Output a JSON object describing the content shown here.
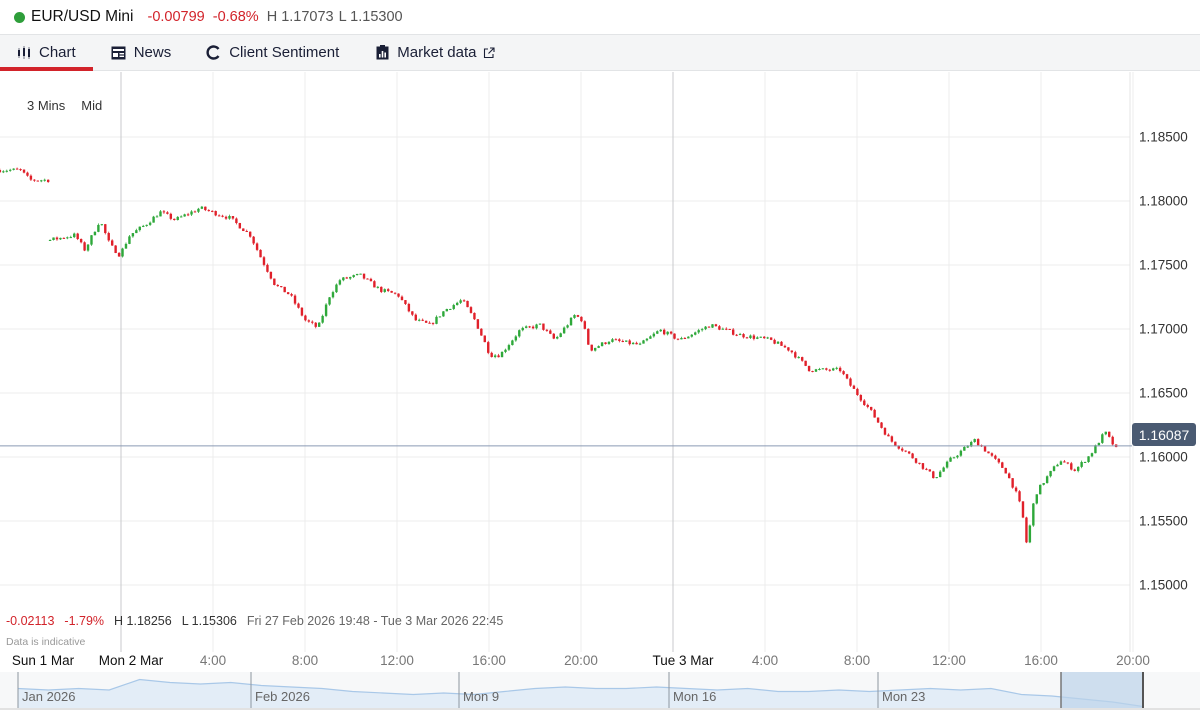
{
  "header": {
    "status_color": "#2e9e3a",
    "instrument": "EUR/USD Mini",
    "change": "-0.00799",
    "change_pct": "-0.68%",
    "high": "H 1.17073",
    "low": "L 1.15300"
  },
  "tabs": [
    {
      "label": "Chart",
      "icon": "candlestick-icon",
      "active": true
    },
    {
      "label": "News",
      "icon": "newspaper-icon"
    },
    {
      "label": "Client Sentiment",
      "icon": "refresh-circle-icon"
    },
    {
      "label": "Market data",
      "icon": "clipboard-chart-icon",
      "external": "external-link-icon"
    }
  ],
  "options": {
    "interval": "3 Mins",
    "price_type": "Mid"
  },
  "stats": {
    "change": "-0.02113",
    "change_pct": "-1.79%",
    "high": "H 1.18256",
    "low": "L 1.15306",
    "range": "Fri 27 Feb 2026 19:48 - Tue 3 Mar 2026 22:45",
    "note": "Data is indicative"
  },
  "chart_data": {
    "type": "candlestick",
    "interval": "3 Mins",
    "colors": {
      "up": "#2ea83a",
      "down": "#e0202a",
      "grid": "#ececec",
      "day_line": "#c8cacd",
      "price_line": "#8a9ab5"
    },
    "current_price": "1.16087",
    "y_ticks": [
      "1.18500",
      "1.18000",
      "1.17500",
      "1.17000",
      "1.16500",
      "1.16000",
      "1.15500",
      "1.15000"
    ],
    "y_values": [
      1.185,
      1.18,
      1.175,
      1.17,
      1.165,
      1.16,
      1.155,
      1.15
    ],
    "x_ticks": [
      {
        "label": "Sun 1 Mar",
        "t": "2026-03-01T18:00",
        "day": true
      },
      {
        "label": "Mon 2 Mar",
        "t": "2026-03-02T00:00",
        "day": true
      },
      {
        "label": "4:00",
        "t": "2026-03-02T04:00"
      },
      {
        "label": "8:00",
        "t": "2026-03-02T08:00"
      },
      {
        "label": "12:00",
        "t": "2026-03-02T12:00"
      },
      {
        "label": "16:00",
        "t": "2026-03-02T16:00"
      },
      {
        "label": "20:00",
        "t": "2026-03-02T20:00"
      },
      {
        "label": "Tue 3 Mar",
        "t": "2026-03-03T00:00",
        "day": true
      },
      {
        "label": "4:00",
        "t": "2026-03-03T04:00"
      },
      {
        "label": "8:00",
        "t": "2026-03-03T08:00"
      },
      {
        "label": "12:00",
        "t": "2026-03-03T12:00"
      },
      {
        "label": "16:00",
        "t": "2026-03-03T16:00"
      },
      {
        "label": "20:00",
        "t": "2026-03-03T20:00"
      }
    ],
    "segments": [
      [
        [
          "2026-03-01T18:44",
          1.18242
        ],
        [
          "2026-03-01T19:37",
          1.18242
        ],
        [
          "2026-03-01T20:02",
          1.18164
        ],
        [
          "2026-03-01T20:50",
          1.18164
        ]
      ],
      [
        [
          "2026-03-01T20:55",
          1.17695
        ],
        [
          "2026-03-01T22:00",
          1.17734
        ],
        [
          "2026-03-01T22:26",
          1.17617
        ],
        [
          "2026-03-01T23:05",
          1.17852
        ],
        [
          "2026-03-01T23:31",
          1.17656
        ],
        [
          "2026-03-01T23:57",
          1.17578
        ],
        [
          "2026-03-02T00:23",
          1.17734
        ],
        [
          "2026-03-02T01:03",
          1.17813
        ],
        [
          "2026-03-02T01:42",
          1.17914
        ],
        [
          "2026-03-02T02:21",
          1.17852
        ],
        [
          "2026-03-02T03:26",
          1.17945
        ],
        [
          "2026-03-02T04:44",
          1.17867
        ],
        [
          "2026-03-02T05:37",
          1.17734
        ],
        [
          "2026-03-02T06:08",
          1.17539
        ],
        [
          "2026-03-02T06:42",
          1.17344
        ],
        [
          "2026-03-02T07:21",
          1.17266
        ],
        [
          "2026-03-02T08:00",
          1.1707
        ],
        [
          "2026-03-02T08:34",
          1.17008
        ],
        [
          "2026-03-02T09:05",
          1.17266
        ],
        [
          "2026-03-02T09:31",
          1.17383
        ],
        [
          "2026-03-02T10:23",
          1.17422
        ],
        [
          "2026-03-02T11:16",
          1.17305
        ],
        [
          "2026-03-02T12:03",
          1.17266
        ],
        [
          "2026-03-02T12:47",
          1.1707
        ],
        [
          "2026-03-02T13:26",
          1.17031
        ],
        [
          "2026-03-02T14:05",
          1.17148
        ],
        [
          "2026-03-02T14:50",
          1.17227
        ],
        [
          "2026-03-02T15:23",
          1.1707
        ],
        [
          "2026-03-02T16:03",
          1.16797
        ],
        [
          "2026-03-02T16:29",
          1.16797
        ],
        [
          "2026-03-02T17:21",
          1.16992
        ],
        [
          "2026-03-02T18:13",
          1.17031
        ],
        [
          "2026-03-02T18:52",
          1.16914
        ],
        [
          "2026-03-02T19:44",
          1.17109
        ],
        [
          "2026-03-02T20:03",
          1.1707
        ],
        [
          "2026-03-02T20:23",
          1.16836
        ],
        [
          "2026-03-02T21:16",
          1.16914
        ],
        [
          "2026-03-02T22:34",
          1.16875
        ],
        [
          "2026-03-02T23:26",
          1.16992
        ],
        [
          "2026-03-03T00:18",
          1.16914
        ],
        [
          "2026-03-03T01:37",
          1.17031
        ],
        [
          "2026-03-03T02:55",
          1.16953
        ],
        [
          "2026-03-03T04:13",
          1.16914
        ],
        [
          "2026-03-03T05:05",
          1.16836
        ],
        [
          "2026-03-03T05:57",
          1.1668
        ],
        [
          "2026-03-03T07:16",
          1.1668
        ],
        [
          "2026-03-03T07:42",
          1.16563
        ],
        [
          "2026-03-03T08:34",
          1.16367
        ],
        [
          "2026-03-03T09:26",
          1.16133
        ],
        [
          "2026-03-03T10:18",
          1.16016
        ],
        [
          "2026-03-03T11:23",
          1.15836
        ],
        [
          "2026-03-03T12:03",
          1.15977
        ],
        [
          "2026-03-03T13:08",
          1.16133
        ],
        [
          "2026-03-03T13:47",
          1.16016
        ],
        [
          "2026-03-03T14:26",
          1.15898
        ],
        [
          "2026-03-03T14:52",
          1.15742
        ],
        [
          "2026-03-03T15:10",
          1.15586
        ],
        [
          "2026-03-03T15:23",
          1.15313
        ],
        [
          "2026-03-03T15:44",
          1.15703
        ],
        [
          "2026-03-03T16:10",
          1.1582
        ],
        [
          "2026-03-03T16:50",
          1.15977
        ],
        [
          "2026-03-03T17:29",
          1.15898
        ],
        [
          "2026-03-03T18:08",
          1.16016
        ],
        [
          "2026-03-03T18:47",
          1.16195
        ],
        [
          "2026-03-03T19:21",
          1.16039
        ]
      ]
    ]
  },
  "navigator": {
    "labels": [
      "Jan 2026",
      "Feb 2026",
      "Mon 9",
      "Mon 16",
      "Mon 23"
    ],
    "series": [
      1.172,
      1.171,
      1.172,
      1.171,
      1.178,
      1.176,
      1.175,
      1.176,
      1.174,
      1.173,
      1.172,
      1.17,
      1.169,
      1.168,
      1.169,
      1.168,
      1.17,
      1.172,
      1.173,
      1.172,
      1.172,
      1.173,
      1.172,
      1.171,
      1.172,
      1.17,
      1.17,
      1.171,
      1.17,
      1.171,
      1.172,
      1.171,
      1.172,
      1.168,
      1.167,
      1.165,
      1.163,
      1.16
    ]
  }
}
